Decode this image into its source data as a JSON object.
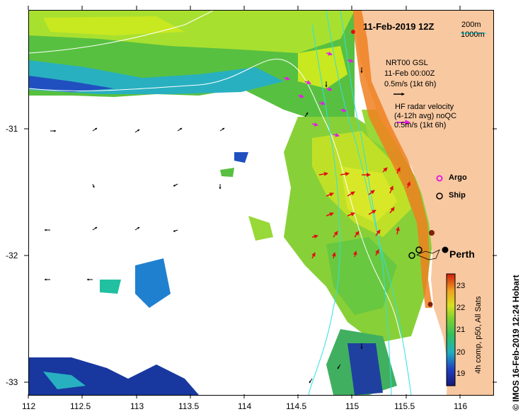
{
  "title": "11-Feb-2019 12Z",
  "isobaths": {
    "shallow": "200m",
    "deep": "1000m"
  },
  "model_legend": {
    "line1": "NRT00 GSL",
    "line2": "11-Feb 00:00Z",
    "line3": "0.5m/s (1kt 6h)"
  },
  "radar_legend": {
    "line1": "HF radar velocity",
    "line2": "(4-12h avg) noQC",
    "line3": "0.5m/s (1kt 6h)"
  },
  "markers": {
    "argo": "Argo",
    "ship": "Ship"
  },
  "city": "Perth",
  "colorbar": {
    "label": "4h comp, p50, All Sats",
    "ticks": [
      "19",
      "20",
      "21",
      "22",
      "23"
    ],
    "min": 18.6,
    "max": 23.6
  },
  "credit": "© IMOS 16-Feb-2019 12:24 Hobart",
  "axes": {
    "x_ticks": [
      "112",
      "112.5",
      "113",
      "113.5",
      "114",
      "114.5",
      "115",
      "115.5",
      "116"
    ],
    "y_ticks": [
      "-31",
      "-32",
      "-33"
    ]
  },
  "colors": {
    "land": "#f8c8a0",
    "radar_arrow": "#e01010",
    "argo": "#e020e0",
    "isobath": "#30e0e0"
  }
}
